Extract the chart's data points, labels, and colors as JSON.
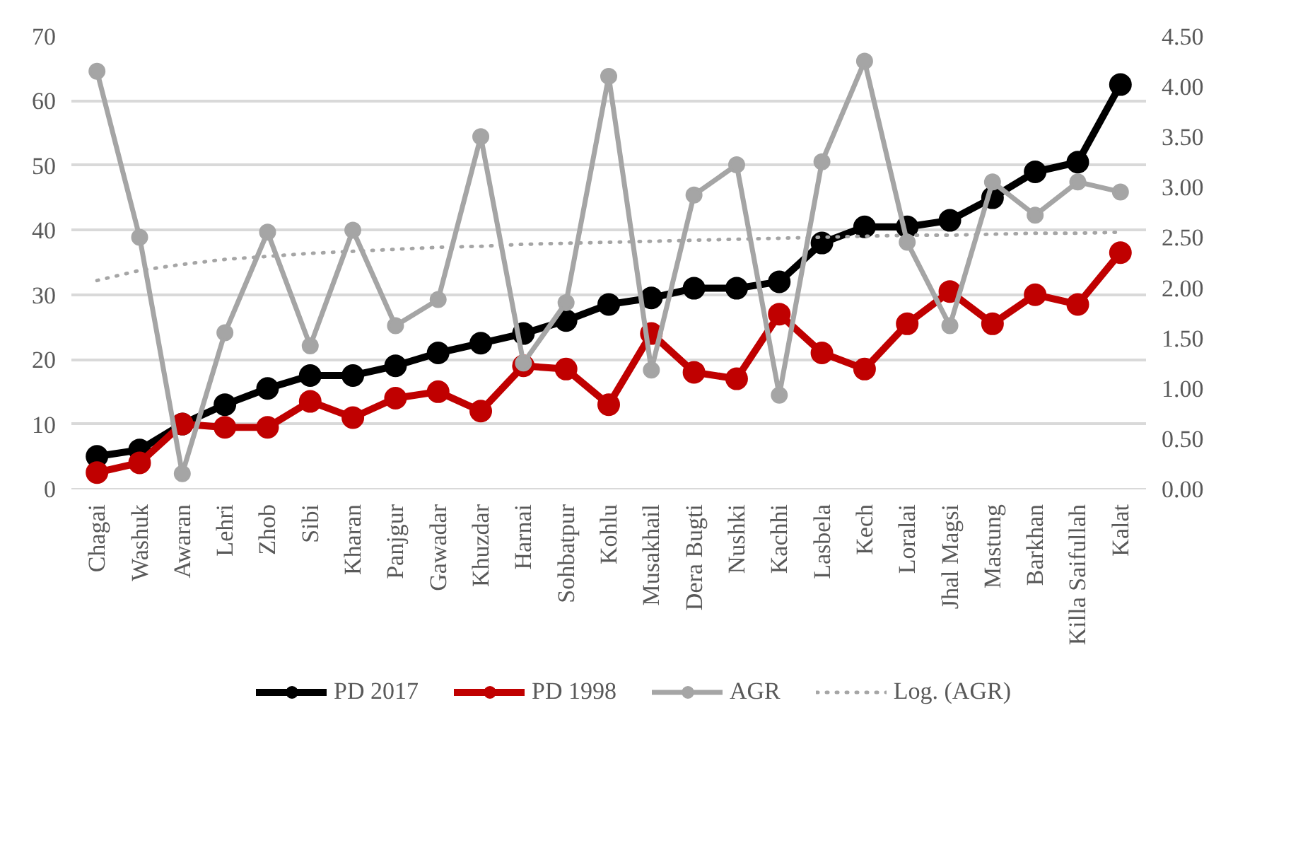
{
  "chart_data": {
    "type": "line",
    "categories": [
      "Chagai",
      "Washuk",
      "Awaran",
      "Lehri",
      "Zhob",
      "Sibi",
      "Kharan",
      "Panjgur",
      "Gawadar",
      "Khuzdar",
      "Harnai",
      "Sohbatpur",
      "Kohlu",
      "Musakhail",
      "Dera Bugti",
      "Nushki",
      "Kachhi",
      "Lasbela",
      "Kech",
      "Loralai",
      "Jhal Magsi",
      "Mastung",
      "Barkhan",
      "Killa Saifullah",
      "Kalat"
    ],
    "series": [
      {
        "name": "PD 2017",
        "color": "#000000",
        "marker": "circle",
        "line_style": "solid",
        "values": [
          5,
          6,
          10,
          13,
          15.5,
          17.5,
          17.5,
          19,
          21,
          22.5,
          24,
          26,
          28.5,
          29.5,
          31,
          31,
          32,
          38,
          40.5,
          40.5,
          41.5,
          45,
          49,
          50.5,
          62.5
        ]
      },
      {
        "name": "PD 1998",
        "color": "#c00000",
        "marker": "circle",
        "line_style": "solid",
        "values": [
          2.5,
          4,
          10,
          9.5,
          9.5,
          13.5,
          11,
          14,
          15,
          12,
          19,
          18.5,
          13,
          24,
          18,
          17,
          27,
          21,
          18.5,
          25.5,
          30.5,
          25.5,
          30,
          28.5,
          36.5
        ]
      },
      {
        "name": "AGR",
        "color": "#a5a5a5",
        "marker": "circle",
        "line_style": "solid",
        "axis": "y2",
        "values": [
          4.15,
          2.5,
          0.15,
          1.55,
          2.55,
          1.42,
          2.57,
          1.62,
          1.88,
          3.5,
          1.25,
          1.85,
          4.1,
          1.18,
          2.92,
          3.22,
          0.93,
          3.25,
          4.25,
          2.45,
          1.62,
          3.05,
          2.72,
          3.05,
          2.95
        ]
      },
      {
        "name": "Log. (AGR)",
        "color": "#a5a5a5",
        "marker": "none",
        "line_style": "dotted",
        "axis": "y2",
        "values": [
          2.07,
          2.17,
          2.23,
          2.28,
          2.31,
          2.34,
          2.36,
          2.38,
          2.4,
          2.41,
          2.43,
          2.44,
          2.45,
          2.46,
          2.47,
          2.48,
          2.49,
          2.5,
          2.51,
          2.52,
          2.52,
          2.53,
          2.54,
          2.54,
          2.55
        ]
      }
    ],
    "ylim": [
      0,
      70
    ],
    "yticks": [
      0,
      10,
      20,
      30,
      40,
      50,
      60,
      70
    ],
    "y2lim": [
      0,
      4.5
    ],
    "y2ticks": [
      {
        "value": 0,
        "label": "0.00"
      },
      {
        "value": 0.5,
        "label": "0.50"
      },
      {
        "value": 1,
        "label": "1.00"
      },
      {
        "value": 1.5,
        "label": "1.50"
      },
      {
        "value": 2,
        "label": "2.00"
      },
      {
        "value": 2.5,
        "label": "2.50"
      },
      {
        "value": 3,
        "label": "3.00"
      },
      {
        "value": 3.5,
        "label": "3.50"
      },
      {
        "value": 4,
        "label": "4.00"
      },
      {
        "value": 4.5,
        "label": "4.50"
      }
    ],
    "grid": "y",
    "legend": "bottom"
  }
}
